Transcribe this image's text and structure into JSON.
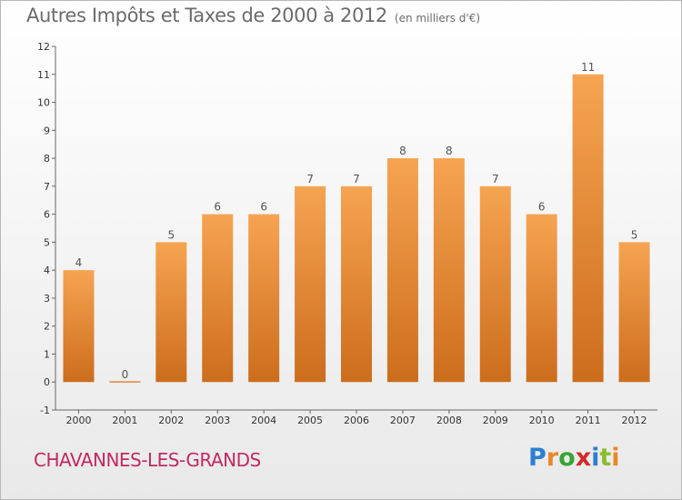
{
  "header": {
    "title": "Autres Impôts et Taxes de 2000 à 2012",
    "unit": "(en milliers d'€)"
  },
  "footer": {
    "commune": "CHAVANNES-LES-GRANDS",
    "logo_letters": [
      "P",
      "r",
      "o",
      "x",
      "i",
      "t",
      "i"
    ],
    "logo_colors": [
      "#2c7fd0",
      "#e8882a",
      "#3aa335",
      "#d42a2a",
      "#2c7fd0",
      "#8bbd2c",
      "#e8882a"
    ]
  },
  "colors": {
    "bar_top": "#f6a452",
    "bar_bottom": "#cc6d1c",
    "commune": "#c02a63"
  },
  "chart_data": {
    "type": "bar",
    "categories": [
      "2000",
      "2001",
      "2002",
      "2003",
      "2004",
      "2005",
      "2006",
      "2007",
      "2008",
      "2009",
      "2010",
      "2011",
      "2012"
    ],
    "values": [
      4,
      0,
      5,
      6,
      6,
      7,
      7,
      8,
      8,
      7,
      6,
      11,
      5
    ],
    "ylim": [
      -1,
      12
    ],
    "yticks": [
      -1,
      0,
      1,
      2,
      3,
      4,
      5,
      6,
      7,
      8,
      9,
      10,
      11,
      12
    ],
    "grid": false,
    "legend": "none"
  }
}
